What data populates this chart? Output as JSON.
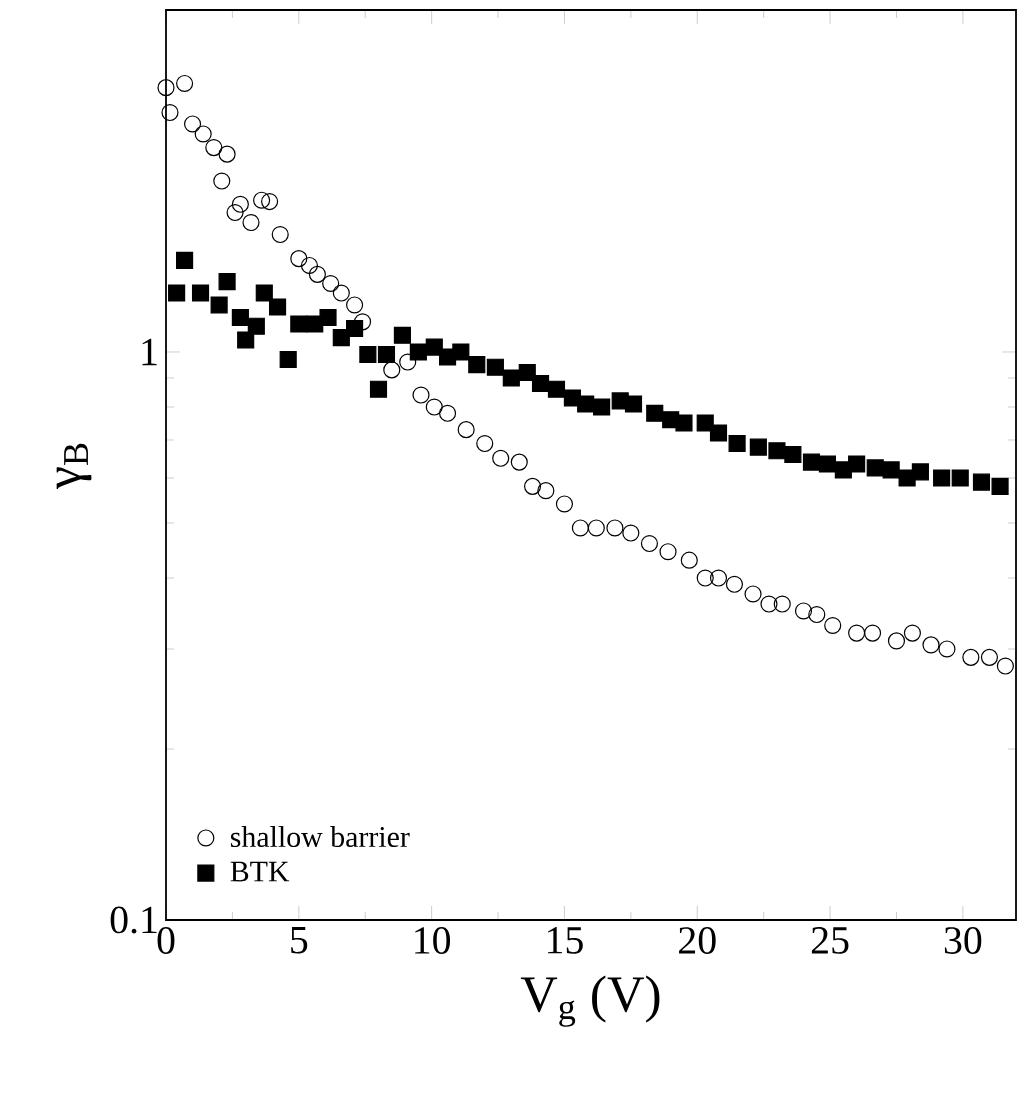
{
  "chart_data": {
    "type": "scatter",
    "xlabel": "V$_{g}$ (V)",
    "ylabel": "γ$_{B}$",
    "log": "y",
    "xlim": [
      0,
      32
    ],
    "ylim": [
      0.1,
      4
    ],
    "xticks": [
      0,
      5,
      10,
      15,
      20,
      25,
      30
    ],
    "yticks": [
      0.1,
      1
    ],
    "legend": "bottom left",
    "grid": false,
    "series": [
      {
        "name": "shallow barrier",
        "color": "#000000",
        "marker": "circle",
        "x": [
          0,
          0.15,
          0.7,
          1,
          1.4,
          1.8,
          2.1,
          2.3,
          2.6,
          2.8,
          3.2,
          3.6,
          3.9,
          4.3,
          5.0,
          5.4,
          5.7,
          6.2,
          6.6,
          7.1,
          7.4,
          8.5,
          9.1,
          9.6,
          10.1,
          10.6,
          11.3,
          12.0,
          12.6,
          13.3,
          13.8,
          14.3,
          15.0,
          15.6,
          16.2,
          16.9,
          17.5,
          18.2,
          18.9,
          19.7,
          20.3,
          20.8,
          21.4,
          22.1,
          22.7,
          23.2,
          24.0,
          24.5,
          25.1,
          26.0,
          26.6,
          27.5,
          28.1,
          28.8,
          29.4,
          30.3,
          31.0,
          31.6
        ],
        "values": [
          2.92,
          2.64,
          2.97,
          2.52,
          2.42,
          2.29,
          2.0,
          2.23,
          1.76,
          1.82,
          1.69,
          1.85,
          1.84,
          1.61,
          1.46,
          1.42,
          1.37,
          1.32,
          1.27,
          1.21,
          1.13,
          0.93,
          0.96,
          0.84,
          0.8,
          0.78,
          0.73,
          0.69,
          0.65,
          0.64,
          0.58,
          0.57,
          0.54,
          0.49,
          0.49,
          0.49,
          0.48,
          0.46,
          0.445,
          0.43,
          0.4,
          0.4,
          0.39,
          0.375,
          0.36,
          0.36,
          0.35,
          0.345,
          0.33,
          0.32,
          0.32,
          0.31,
          0.32,
          0.305,
          0.3,
          0.29,
          0.29,
          0.28
        ]
      },
      {
        "name": "BTK",
        "color": "#000000",
        "marker": "square",
        "x": [
          0.4,
          0.7,
          1.3,
          2.0,
          2.3,
          2.8,
          3.0,
          3.4,
          3.7,
          4.2,
          4.6,
          5.0,
          5.6,
          6.1,
          6.6,
          7.1,
          7.6,
          8.0,
          8.3,
          8.9,
          9.5,
          10.1,
          10.6,
          11.1,
          11.7,
          12.4,
          13.0,
          13.6,
          14.1,
          14.7,
          15.3,
          15.8,
          16.4,
          17.1,
          17.6,
          18.4,
          19.0,
          19.5,
          20.3,
          20.8,
          21.5,
          22.3,
          23.0,
          23.6,
          24.3,
          24.9,
          25.5,
          26.0,
          26.7,
          27.3,
          27.9,
          28.4,
          29.2,
          29.9,
          30.7,
          31.4
        ],
        "values": [
          1.27,
          1.45,
          1.27,
          1.21,
          1.33,
          1.15,
          1.05,
          1.11,
          1.27,
          1.2,
          0.97,
          1.12,
          1.12,
          1.15,
          1.06,
          1.1,
          0.99,
          0.86,
          0.99,
          1.07,
          1.0,
          1.02,
          0.98,
          1.0,
          0.95,
          0.94,
          0.9,
          0.92,
          0.88,
          0.86,
          0.83,
          0.81,
          0.8,
          0.82,
          0.81,
          0.78,
          0.76,
          0.75,
          0.75,
          0.72,
          0.69,
          0.68,
          0.67,
          0.66,
          0.64,
          0.635,
          0.62,
          0.635,
          0.625,
          0.62,
          0.6,
          0.615,
          0.6,
          0.6,
          0.59,
          0.58
        ]
      }
    ]
  }
}
